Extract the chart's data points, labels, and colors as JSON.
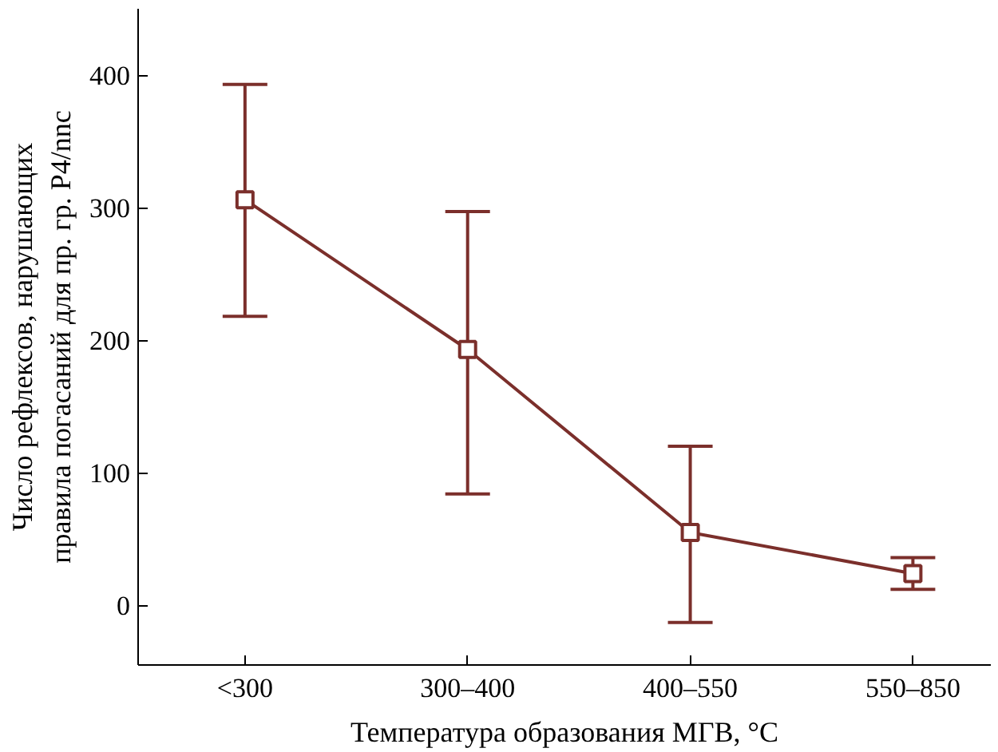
{
  "chart_data": {
    "type": "line",
    "xlabel": "Температура образования МГВ, °C",
    "ylabel": "Число рефлексов, нарушающих\nправила погасаний для пр. гр. P4/nnc",
    "categories": [
      "<300",
      "300–400",
      "400–550",
      "550–850"
    ],
    "series": [
      {
        "color": "#7b2f2b",
        "values": [
          306,
          193,
          55,
          24
        ],
        "errors": [
          [
            218,
            393
          ],
          [
            84,
            297
          ],
          [
            -13,
            120
          ],
          [
            12,
            36
          ]
        ]
      }
    ],
    "ylim": [
      -45,
      450
    ],
    "yticks": [
      0,
      100,
      200,
      300,
      400
    ],
    "grid": false,
    "marker": "square",
    "line_style": "solid"
  }
}
